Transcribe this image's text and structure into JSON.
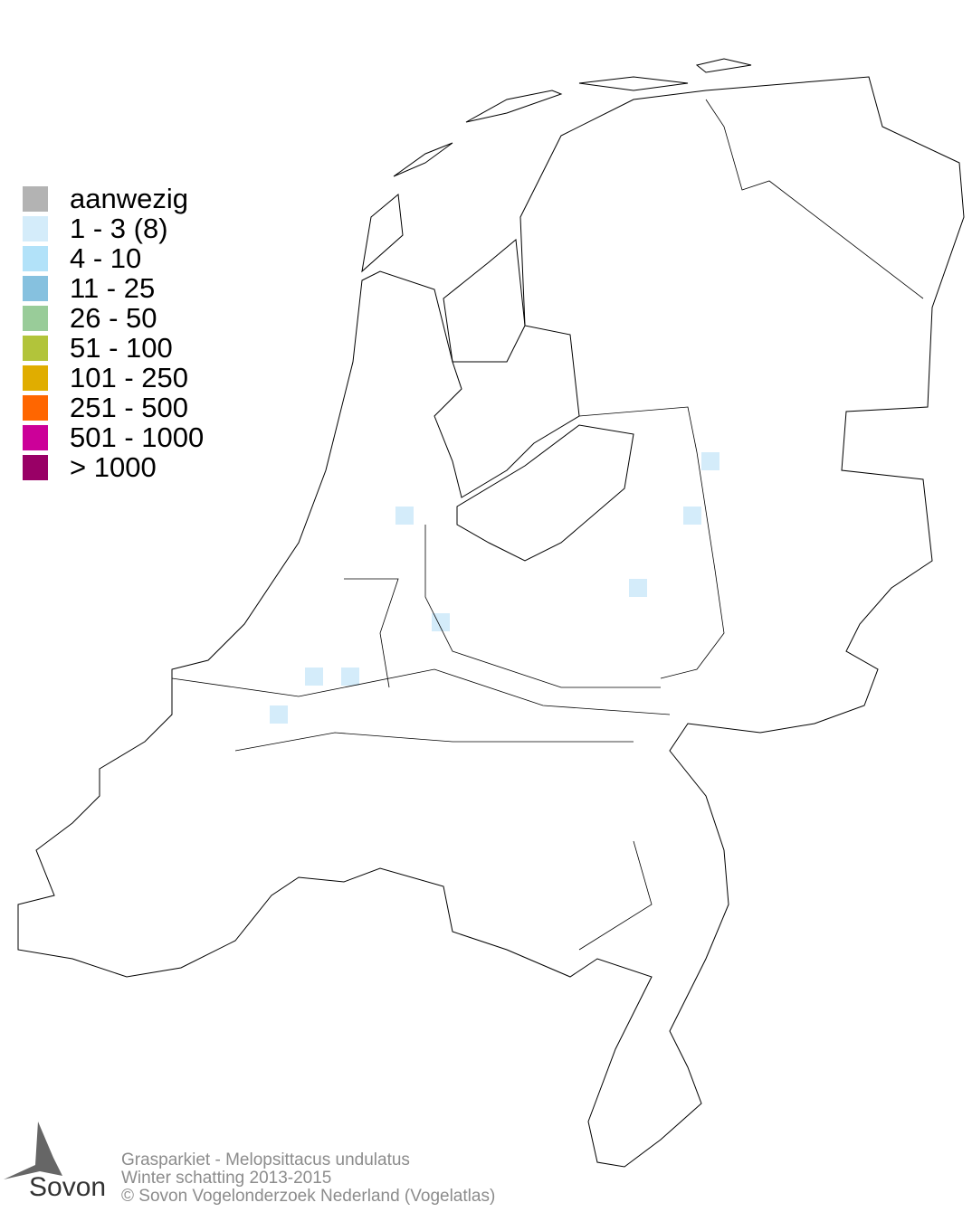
{
  "legend": {
    "items": [
      {
        "label": "aanwezig",
        "color": "#b3b3b3"
      },
      {
        "label": "1 - 3 (8)",
        "color": "#d4ecfa"
      },
      {
        "label": "4 - 10",
        "color": "#b2e2f9"
      },
      {
        "label": "11 - 25",
        "color": "#86c1df"
      },
      {
        "label": "26 - 50",
        "color": "#99cc99"
      },
      {
        "label": "51 - 100",
        "color": "#b2c43a"
      },
      {
        "label": "101 - 250",
        "color": "#e0ad00"
      },
      {
        "label": "251 - 500",
        "color": "#ff6600"
      },
      {
        "label": "501 - 1000",
        "color": "#cc0099"
      },
      {
        "label": "> 1000",
        "color": "#990066"
      }
    ]
  },
  "map": {
    "occupied_cells_class": "1 - 3 (8)",
    "cell_color": "#d4ecfa",
    "cell_count": 8
  },
  "footer": {
    "species": "Grasparkiet - Melopsittacus undulatus",
    "survey": "Winter schatting 2013-2015",
    "copyright": "© Sovon Vogelonderzoek Nederland (Vogelatlas)"
  },
  "logo": {
    "text": "Sovon"
  }
}
